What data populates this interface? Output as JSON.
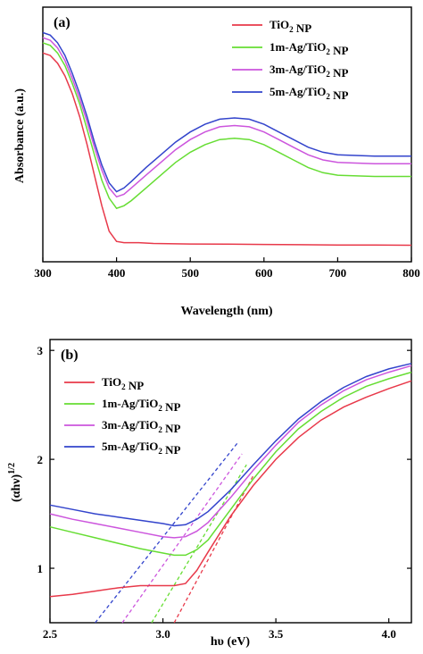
{
  "chart_data": [
    {
      "type": "line",
      "panel_label": "(a)",
      "xlabel": "Wavelength (nm)",
      "ylabel": "Absorbance (a.u.)",
      "xlim": [
        300,
        800
      ],
      "ylim": [
        0,
        1
      ],
      "y_ticks_shown": false,
      "x_ticks": [
        "300",
        "400",
        "500",
        "600",
        "700",
        "800"
      ],
      "legend_position": "top-right",
      "series": [
        {
          "name": "TiO₂ NP",
          "color": "#e8394a",
          "x": [
            300,
            310,
            320,
            330,
            340,
            350,
            360,
            370,
            380,
            390,
            400,
            410,
            430,
            450,
            500,
            550,
            600,
            650,
            700,
            750,
            800
          ],
          "y": [
            0.82,
            0.81,
            0.78,
            0.73,
            0.66,
            0.57,
            0.46,
            0.34,
            0.22,
            0.12,
            0.08,
            0.075,
            0.075,
            0.072,
            0.07,
            0.069,
            0.068,
            0.067,
            0.066,
            0.066,
            0.065
          ]
        },
        {
          "name": "1m-Ag/TiO₂ NP",
          "color": "#66dd33",
          "x": [
            300,
            310,
            320,
            330,
            340,
            350,
            360,
            370,
            380,
            390,
            400,
            410,
            420,
            440,
            460,
            480,
            500,
            520,
            540,
            560,
            580,
            600,
            620,
            640,
            660,
            680,
            700,
            750,
            800
          ],
          "y": [
            0.86,
            0.85,
            0.82,
            0.77,
            0.7,
            0.62,
            0.52,
            0.42,
            0.32,
            0.25,
            0.21,
            0.22,
            0.24,
            0.29,
            0.34,
            0.39,
            0.43,
            0.46,
            0.48,
            0.485,
            0.48,
            0.46,
            0.43,
            0.4,
            0.37,
            0.35,
            0.34,
            0.335,
            0.335
          ]
        },
        {
          "name": "3m-Ag/TiO₂ NP",
          "color": "#cc55dd",
          "x": [
            300,
            310,
            320,
            330,
            340,
            350,
            360,
            370,
            380,
            390,
            400,
            410,
            420,
            440,
            460,
            480,
            500,
            520,
            540,
            560,
            580,
            600,
            620,
            640,
            660,
            680,
            700,
            750,
            800
          ],
          "y": [
            0.88,
            0.87,
            0.84,
            0.79,
            0.72,
            0.64,
            0.55,
            0.45,
            0.36,
            0.29,
            0.255,
            0.265,
            0.29,
            0.34,
            0.39,
            0.44,
            0.48,
            0.51,
            0.53,
            0.535,
            0.53,
            0.51,
            0.48,
            0.45,
            0.42,
            0.4,
            0.39,
            0.385,
            0.385
          ]
        },
        {
          "name": "5m-Ag/TiO₂ NP",
          "color": "#3344cc",
          "x": [
            300,
            310,
            320,
            330,
            340,
            350,
            360,
            370,
            380,
            390,
            400,
            410,
            420,
            440,
            460,
            480,
            500,
            520,
            540,
            560,
            580,
            600,
            620,
            640,
            660,
            680,
            700,
            750,
            800
          ],
          "y": [
            0.9,
            0.89,
            0.86,
            0.81,
            0.74,
            0.66,
            0.57,
            0.47,
            0.38,
            0.31,
            0.275,
            0.29,
            0.315,
            0.37,
            0.42,
            0.47,
            0.51,
            0.54,
            0.56,
            0.565,
            0.56,
            0.54,
            0.51,
            0.48,
            0.45,
            0.43,
            0.42,
            0.415,
            0.415
          ]
        }
      ]
    },
    {
      "type": "line",
      "panel_label": "(b)",
      "xlabel": "hυ (eV)",
      "ylabel": "(αhν)",
      "ylabel_superscript": "1/2",
      "xlim": [
        2.5,
        4.1
      ],
      "ylim": [
        0.5,
        3.1
      ],
      "x_ticks": [
        "2.5",
        "3.0",
        "3.5",
        "4.0"
      ],
      "y_ticks": [
        "1",
        "2",
        "3"
      ],
      "legend_position": "top-left",
      "series": [
        {
          "name": "TiO₂ NP",
          "color": "#e8394a",
          "x": [
            2.5,
            2.6,
            2.7,
            2.8,
            2.9,
            3.0,
            3.05,
            3.1,
            3.15,
            3.2,
            3.3,
            3.4,
            3.5,
            3.6,
            3.7,
            3.8,
            3.9,
            4.0,
            4.1
          ],
          "y": [
            0.74,
            0.76,
            0.79,
            0.82,
            0.84,
            0.84,
            0.84,
            0.86,
            0.98,
            1.15,
            1.48,
            1.76,
            2.0,
            2.2,
            2.36,
            2.48,
            2.57,
            2.65,
            2.72
          ],
          "tangent": {
            "x": [
              3.05,
              3.4
            ],
            "y": [
              0.5,
              1.85
            ]
          }
        },
        {
          "name": "1m-Ag/TiO₂ NP",
          "color": "#66dd33",
          "x": [
            2.5,
            2.6,
            2.7,
            2.8,
            2.9,
            3.0,
            3.05,
            3.1,
            3.15,
            3.2,
            3.3,
            3.4,
            3.5,
            3.6,
            3.7,
            3.8,
            3.9,
            4.0,
            4.1
          ],
          "y": [
            1.38,
            1.33,
            1.28,
            1.23,
            1.18,
            1.14,
            1.12,
            1.12,
            1.17,
            1.26,
            1.54,
            1.82,
            2.07,
            2.28,
            2.44,
            2.57,
            2.67,
            2.74,
            2.8
          ],
          "tangent": {
            "x": [
              2.95,
              3.37
            ],
            "y": [
              0.5,
              1.95
            ]
          }
        },
        {
          "name": "3m-Ag/TiO₂ NP",
          "color": "#cc55dd",
          "x": [
            2.5,
            2.6,
            2.7,
            2.8,
            2.9,
            3.0,
            3.05,
            3.1,
            3.15,
            3.2,
            3.3,
            3.4,
            3.5,
            3.6,
            3.7,
            3.8,
            3.9,
            4.0,
            4.1
          ],
          "y": [
            1.5,
            1.45,
            1.41,
            1.37,
            1.33,
            1.29,
            1.28,
            1.29,
            1.34,
            1.42,
            1.65,
            1.9,
            2.13,
            2.34,
            2.5,
            2.63,
            2.73,
            2.8,
            2.86
          ],
          "tangent": {
            "x": [
              2.82,
              3.35
            ],
            "y": [
              0.5,
              2.05
            ]
          }
        },
        {
          "name": "5m-Ag/TiO₂ NP",
          "color": "#3344cc",
          "x": [
            2.5,
            2.6,
            2.7,
            2.8,
            2.9,
            3.0,
            3.05,
            3.1,
            3.15,
            3.2,
            3.3,
            3.4,
            3.5,
            3.6,
            3.7,
            3.8,
            3.9,
            4.0,
            4.1
          ],
          "y": [
            1.58,
            1.54,
            1.5,
            1.47,
            1.44,
            1.41,
            1.39,
            1.4,
            1.45,
            1.52,
            1.72,
            1.95,
            2.17,
            2.37,
            2.53,
            2.66,
            2.76,
            2.83,
            2.88
          ],
          "tangent": {
            "x": [
              2.7,
              3.33
            ],
            "y": [
              0.5,
              2.15
            ]
          }
        }
      ]
    }
  ]
}
